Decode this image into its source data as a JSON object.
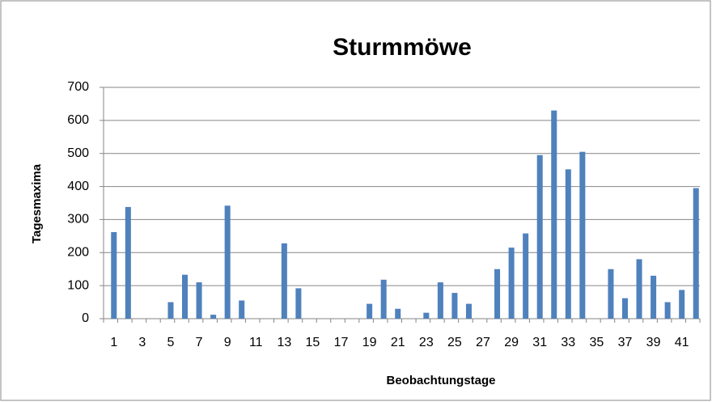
{
  "chart_data": {
    "type": "bar",
    "title": "Sturmmöwe",
    "x_label": "Beobachtungstage",
    "y_label": "Tagesmaxima",
    "categories": [
      "1",
      null,
      "3",
      null,
      "5",
      null,
      "7",
      null,
      "9",
      null,
      "11",
      null,
      "13",
      null,
      "15",
      null,
      "17",
      null,
      "19",
      null,
      "21",
      null,
      "23",
      null,
      "25",
      null,
      "27",
      null,
      "29",
      null,
      "31",
      null,
      "33",
      null,
      "35",
      null,
      "37",
      null,
      "39",
      null,
      "41",
      null
    ],
    "values": [
      262,
      338,
      0,
      0,
      50,
      133,
      110,
      12,
      342,
      55,
      0,
      0,
      228,
      92,
      0,
      0,
      0,
      0,
      45,
      118,
      30,
      0,
      18,
      110,
      78,
      45,
      0,
      150,
      215,
      258,
      495,
      630,
      452,
      505,
      0,
      150,
      62,
      180,
      130,
      50,
      87,
      395
    ],
    "color": "#4f81bd",
    "ylim": [
      0,
      700
    ],
    "yticks": [
      0,
      100,
      200,
      300,
      400,
      500,
      600,
      700
    ],
    "grid": true
  }
}
